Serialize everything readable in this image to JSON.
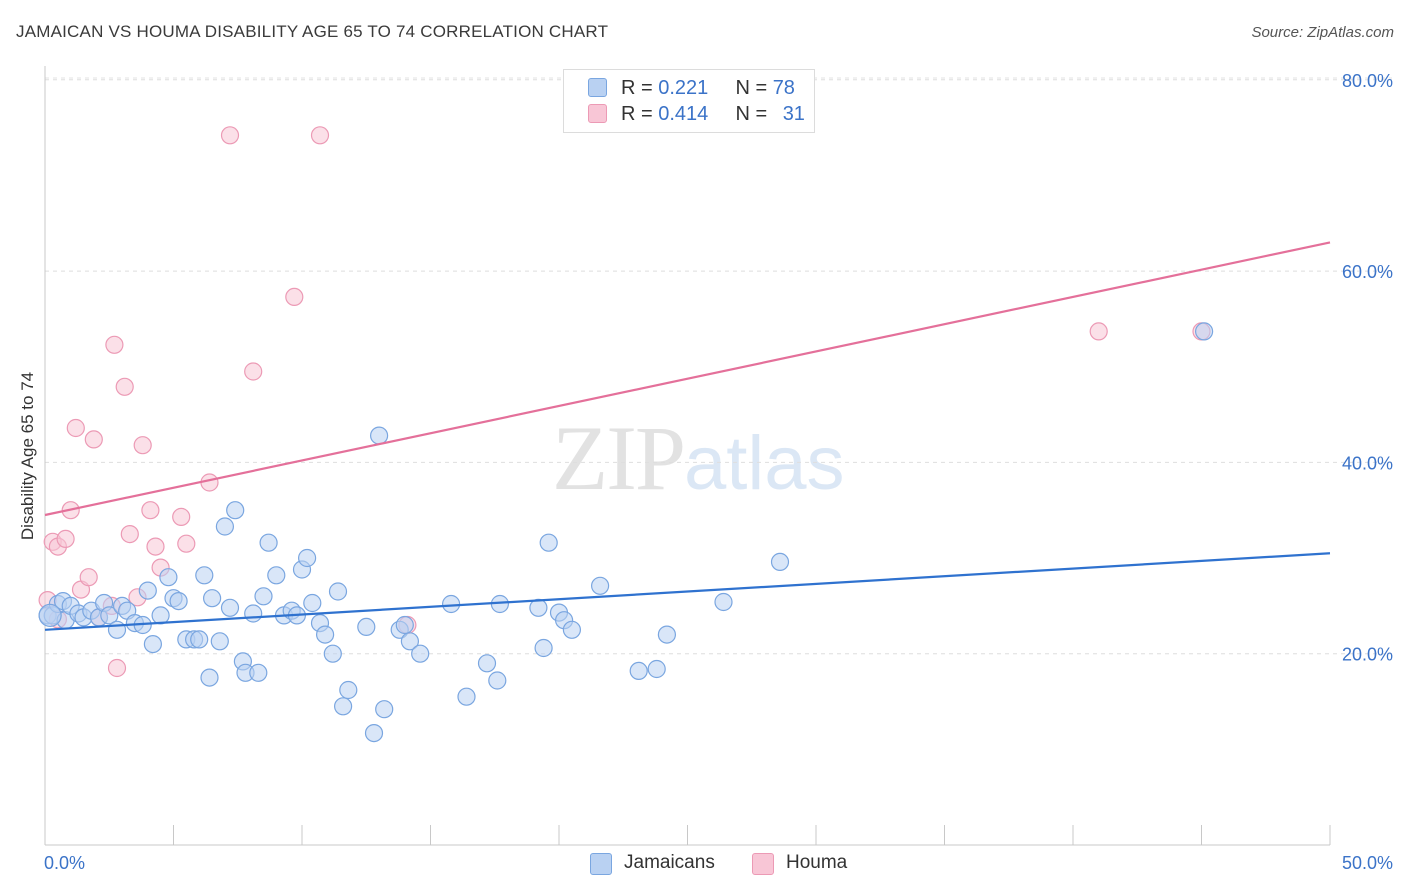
{
  "header": {
    "title": "JAMAICAN VS HOUMA DISABILITY AGE 65 TO 74 CORRELATION CHART",
    "source": "Source: ZipAtlas.com"
  },
  "watermark": {
    "zip": "ZIP",
    "atlas": "atlas"
  },
  "legend": {
    "rows": [
      {
        "r_label": "R = ",
        "r_value": "0.221",
        "n_label": "N = ",
        "n_value": "78"
      },
      {
        "r_label": "R = ",
        "r_value": "0.414",
        "n_label": "N = ",
        "n_value": "31"
      }
    ]
  },
  "bottom_legend": {
    "jamaicans": "Jamaicans",
    "houma": "Houma"
  },
  "colors": {
    "jamaicans_fill": "#b9d1f2",
    "jamaicans_stroke": "#7aa6e0",
    "jamaicans_line": "#2f72cf",
    "houma_fill": "#f8c6d6",
    "houma_stroke": "#ec9ab5",
    "houma_line": "#e4709a",
    "tick_label": "#3b73c8"
  },
  "chart_data": {
    "type": "scatter",
    "title": "JAMAICAN VS HOUMA DISABILITY AGE 65 TO 74 CORRELATION CHART",
    "xlabel": "",
    "ylabel": "Disability Age 65 to 74",
    "xlim": [
      0,
      50
    ],
    "ylim": [
      0,
      85
    ],
    "x_tick_labels": [
      "0.0%",
      "50.0%"
    ],
    "y_ticks": [
      20,
      40,
      60,
      80
    ],
    "y_tick_labels": [
      "20.0%",
      "40.0%",
      "60.0%",
      "80.0%"
    ],
    "grid": "horizontal dashed",
    "legend_position": "top-center",
    "series": [
      {
        "name": "Jamaicans",
        "r": 0.221,
        "n": 78,
        "trend": {
          "x": [
            0,
            50
          ],
          "y": [
            22.5,
            30.5
          ]
        },
        "points": [
          [
            0.1,
            24.0
          ],
          [
            0.3,
            24.0
          ],
          [
            0.5,
            25.2
          ],
          [
            0.7,
            25.5
          ],
          [
            0.8,
            23.5
          ],
          [
            1.0,
            25.0
          ],
          [
            1.3,
            24.2
          ],
          [
            1.5,
            23.8
          ],
          [
            1.8,
            24.5
          ],
          [
            2.1,
            23.8
          ],
          [
            2.3,
            25.3
          ],
          [
            2.5,
            24.0
          ],
          [
            2.8,
            22.5
          ],
          [
            3.0,
            25.0
          ],
          [
            3.2,
            24.5
          ],
          [
            3.5,
            23.2
          ],
          [
            3.8,
            23.0
          ],
          [
            4.0,
            26.6
          ],
          [
            4.2,
            21.0
          ],
          [
            4.5,
            24.0
          ],
          [
            4.8,
            28.0
          ],
          [
            5.0,
            25.8
          ],
          [
            5.2,
            25.5
          ],
          [
            5.5,
            21.5
          ],
          [
            5.8,
            21.5
          ],
          [
            6.0,
            21.5
          ],
          [
            6.2,
            28.2
          ],
          [
            6.4,
            17.5
          ],
          [
            6.5,
            25.8
          ],
          [
            6.8,
            21.3
          ],
          [
            7.0,
            33.3
          ],
          [
            7.2,
            24.8
          ],
          [
            7.4,
            35.0
          ],
          [
            7.7,
            19.2
          ],
          [
            7.8,
            18.0
          ],
          [
            8.1,
            24.2
          ],
          [
            8.3,
            18.0
          ],
          [
            8.5,
            26.0
          ],
          [
            8.7,
            31.6
          ],
          [
            9.0,
            28.2
          ],
          [
            9.3,
            24.0
          ],
          [
            9.6,
            24.5
          ],
          [
            9.8,
            24.0
          ],
          [
            10.0,
            28.8
          ],
          [
            10.2,
            30.0
          ],
          [
            10.4,
            25.3
          ],
          [
            10.7,
            23.2
          ],
          [
            10.9,
            22.0
          ],
          [
            11.2,
            20.0
          ],
          [
            11.4,
            26.5
          ],
          [
            11.6,
            14.5
          ],
          [
            11.8,
            16.2
          ],
          [
            12.5,
            22.8
          ],
          [
            12.8,
            11.7
          ],
          [
            13.0,
            42.8
          ],
          [
            13.2,
            14.2
          ],
          [
            13.8,
            22.5
          ],
          [
            14.0,
            23.0
          ],
          [
            14.2,
            21.3
          ],
          [
            14.6,
            20.0
          ],
          [
            15.8,
            25.2
          ],
          [
            16.4,
            15.5
          ],
          [
            17.2,
            19.0
          ],
          [
            17.6,
            17.2
          ],
          [
            17.7,
            25.2
          ],
          [
            19.2,
            24.8
          ],
          [
            19.4,
            20.6
          ],
          [
            19.6,
            31.6
          ],
          [
            20.0,
            24.3
          ],
          [
            20.2,
            23.5
          ],
          [
            20.5,
            22.5
          ],
          [
            21.6,
            27.1
          ],
          [
            23.1,
            18.2
          ],
          [
            23.8,
            18.4
          ],
          [
            24.2,
            22.0
          ],
          [
            26.4,
            25.4
          ],
          [
            28.6,
            29.6
          ],
          [
            45.1,
            53.7
          ]
        ]
      },
      {
        "name": "Houma",
        "r": 0.414,
        "n": 31,
        "trend": {
          "x": [
            0,
            50
          ],
          "y": [
            34.5,
            63.0
          ]
        },
        "points": [
          [
            0.1,
            25.6
          ],
          [
            0.3,
            31.7
          ],
          [
            0.5,
            31.2
          ],
          [
            0.8,
            32.0
          ],
          [
            1.0,
            35.0
          ],
          [
            1.2,
            43.6
          ],
          [
            1.4,
            26.7
          ],
          [
            1.7,
            28.0
          ],
          [
            1.9,
            42.4
          ],
          [
            2.1,
            23.8
          ],
          [
            2.6,
            25.0
          ],
          [
            2.7,
            52.3
          ],
          [
            2.8,
            18.5
          ],
          [
            3.1,
            47.9
          ],
          [
            3.3,
            32.5
          ],
          [
            3.6,
            25.9
          ],
          [
            3.8,
            41.8
          ],
          [
            4.1,
            35.0
          ],
          [
            4.3,
            31.2
          ],
          [
            4.5,
            29.0
          ],
          [
            5.3,
            34.3
          ],
          [
            5.5,
            31.5
          ],
          [
            6.4,
            37.9
          ],
          [
            7.2,
            74.2
          ],
          [
            8.1,
            49.5
          ],
          [
            9.7,
            57.3
          ],
          [
            10.7,
            74.2
          ],
          [
            14.1,
            23.0
          ],
          [
            41.0,
            53.7
          ],
          [
            45.0,
            53.7
          ],
          [
            0.5,
            23.6
          ]
        ]
      }
    ]
  }
}
